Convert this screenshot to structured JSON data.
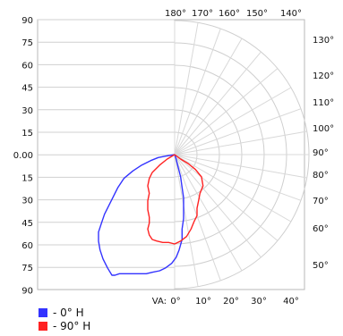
{
  "chart_data": {
    "type": "polar",
    "left_axis_ticks": [
      "90",
      "75",
      "60",
      "45",
      "30",
      "15",
      "0.00",
      "15",
      "30",
      "45",
      "60",
      "75",
      "90"
    ],
    "angle_ticks": [
      "180°",
      "170°",
      "160°",
      "150°",
      "140°",
      "130°",
      "120°",
      "110°",
      "100°",
      "90°",
      "80°",
      "70°",
      "60°",
      "50°"
    ],
    "bottom_label": "VA:",
    "bottom_ticks": [
      "0°",
      "10°",
      "20°",
      "30°",
      "40°"
    ],
    "grid": true,
    "legend_placement": "bottom-left",
    "series": [
      {
        "name": "- 0° H",
        "color": "#3333ff",
        "points": [
          [
            0,
            0
          ],
          [
            1,
            3
          ],
          [
            2,
            7
          ],
          [
            4,
            15
          ],
          [
            5,
            22
          ],
          [
            6,
            29
          ],
          [
            6,
            36
          ],
          [
            6,
            43
          ],
          [
            5,
            50
          ],
          [
            5,
            57
          ],
          [
            3,
            64
          ],
          [
            1,
            69
          ],
          [
            -2,
            73
          ],
          [
            -6,
            76
          ],
          [
            -10,
            78
          ],
          [
            -15,
            79
          ],
          [
            -19,
            80
          ],
          [
            -24,
            80
          ],
          [
            -28,
            80
          ],
          [
            -33,
            80
          ],
          [
            -37,
            80
          ],
          [
            -40,
            81
          ],
          [
            -42,
            81
          ],
          [
            -45,
            76
          ],
          [
            -48,
            70
          ],
          [
            -50,
            64
          ],
          [
            -51,
            58
          ],
          [
            -51,
            52
          ],
          [
            -49,
            46
          ],
          [
            -47,
            40
          ],
          [
            -44,
            34
          ],
          [
            -41,
            28
          ],
          [
            -38,
            22
          ],
          [
            -34,
            16
          ],
          [
            -28,
            11
          ],
          [
            -22,
            7
          ],
          [
            -16,
            4
          ],
          [
            -11,
            2
          ],
          [
            -6,
            1
          ],
          [
            0,
            0
          ]
        ]
      },
      {
        "name": "- 90° H",
        "color": "#ff2222",
        "points": [
          [
            0,
            0
          ],
          [
            4,
            3
          ],
          [
            9,
            6
          ],
          [
            14,
            10
          ],
          [
            18,
            15
          ],
          [
            19,
            21
          ],
          [
            17,
            26
          ],
          [
            16,
            31
          ],
          [
            15,
            36
          ],
          [
            15,
            41
          ],
          [
            13,
            45
          ],
          [
            11,
            50
          ],
          [
            8,
            55
          ],
          [
            4,
            58
          ],
          [
            0,
            60
          ],
          [
            -4,
            59
          ],
          [
            -8,
            59
          ],
          [
            -12,
            58
          ],
          [
            -15,
            57
          ],
          [
            -17,
            54
          ],
          [
            -18,
            50
          ],
          [
            -17,
            46
          ],
          [
            -17,
            42
          ],
          [
            -18,
            37
          ],
          [
            -18,
            31
          ],
          [
            -17,
            26
          ],
          [
            -18,
            21
          ],
          [
            -17,
            16
          ],
          [
            -15,
            12
          ],
          [
            -10,
            7
          ],
          [
            -5,
            3
          ],
          [
            0,
            0
          ]
        ]
      }
    ]
  }
}
